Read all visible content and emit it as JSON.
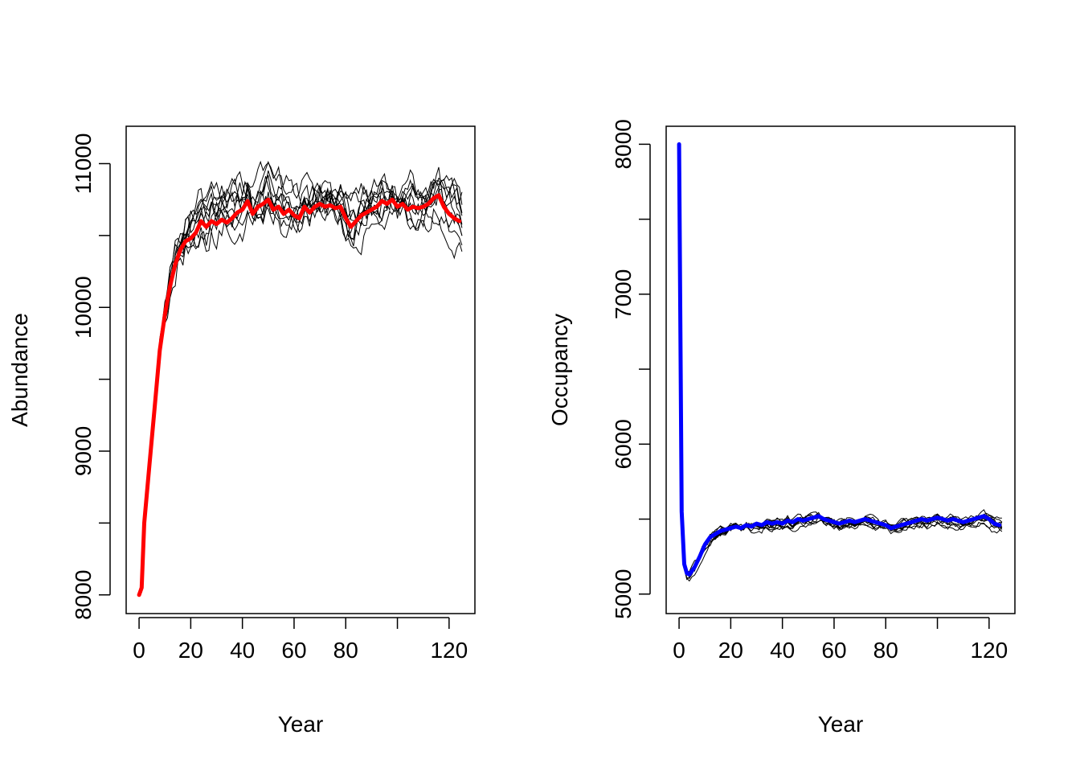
{
  "chart_data": [
    {
      "type": "line",
      "xlabel": "Year",
      "ylabel": "Abundance",
      "xlim": [
        -5,
        130
      ],
      "ylim": [
        7870,
        11260
      ],
      "x_ticks": [
        0,
        20,
        40,
        60,
        80,
        100,
        120
      ],
      "x_tick_labels": [
        "0",
        "20",
        "40",
        "60",
        "80",
        "",
        "120"
      ],
      "y_ticks": [
        8000,
        8500,
        9000,
        9500,
        10000,
        10500,
        11000
      ],
      "y_tick_labels": [
        "8000",
        "",
        "9000",
        "",
        "10000",
        "",
        "11000"
      ],
      "grid": false,
      "legend": "none",
      "colors": {
        "mean": "#ff0000",
        "replicates": "#000000"
      },
      "replicate_lines": 10,
      "mean_series": {
        "x": [
          0,
          1,
          2,
          4,
          6,
          8,
          10,
          12,
          14,
          16,
          18,
          20,
          22,
          24,
          26,
          28,
          30,
          32,
          34,
          36,
          38,
          40,
          42,
          44,
          46,
          48,
          50,
          52,
          54,
          56,
          58,
          60,
          62,
          64,
          66,
          68,
          70,
          72,
          74,
          76,
          78,
          80,
          82,
          84,
          86,
          88,
          90,
          92,
          94,
          96,
          98,
          100,
          102,
          104,
          106,
          108,
          110,
          112,
          114,
          116,
          118,
          120,
          122,
          124
        ],
        "y": [
          8000,
          8050,
          8500,
          8900,
          9300,
          9700,
          9950,
          10150,
          10300,
          10400,
          10460,
          10480,
          10520,
          10600,
          10560,
          10600,
          10580,
          10610,
          10590,
          10620,
          10660,
          10680,
          10740,
          10650,
          10700,
          10720,
          10750,
          10680,
          10700,
          10650,
          10680,
          10640,
          10620,
          10700,
          10660,
          10700,
          10720,
          10700,
          10710,
          10690,
          10700,
          10620,
          10560,
          10600,
          10640,
          10660,
          10680,
          10700,
          10740,
          10720,
          10750,
          10700,
          10720,
          10680,
          10700,
          10690,
          10700,
          10720,
          10760,
          10780,
          10700,
          10650,
          10620,
          10600
        ]
      }
    },
    {
      "type": "line",
      "xlabel": "Year",
      "ylabel": "Occupancy",
      "xlim": [
        -5,
        130
      ],
      "ylim": [
        4870,
        8120
      ],
      "x_ticks": [
        0,
        20,
        40,
        60,
        80,
        100,
        120
      ],
      "x_tick_labels": [
        "0",
        "20",
        "40",
        "60",
        "80",
        "",
        "120"
      ],
      "y_ticks": [
        5000,
        5500,
        6000,
        6500,
        7000,
        7500,
        8000
      ],
      "y_tick_labels": [
        "5000",
        "",
        "6000",
        "",
        "7000",
        "",
        "8000"
      ],
      "grid": false,
      "legend": "none",
      "colors": {
        "mean": "#0000ff",
        "replicates": "#000000"
      },
      "replicate_lines": 10,
      "mean_series": {
        "x": [
          0,
          1,
          2,
          3,
          4,
          6,
          8,
          10,
          12,
          14,
          16,
          18,
          20,
          22,
          24,
          26,
          28,
          30,
          32,
          34,
          36,
          38,
          40,
          42,
          44,
          46,
          48,
          50,
          52,
          54,
          56,
          58,
          60,
          62,
          64,
          66,
          68,
          70,
          72,
          74,
          76,
          78,
          80,
          82,
          84,
          86,
          88,
          90,
          92,
          94,
          96,
          98,
          100,
          102,
          104,
          106,
          108,
          110,
          112,
          114,
          116,
          118,
          120,
          122,
          124
        ],
        "y": [
          8000,
          5550,
          5200,
          5140,
          5130,
          5180,
          5250,
          5330,
          5380,
          5400,
          5420,
          5430,
          5440,
          5450,
          5440,
          5460,
          5450,
          5470,
          5460,
          5480,
          5470,
          5480,
          5470,
          5490,
          5480,
          5500,
          5490,
          5500,
          5510,
          5520,
          5500,
          5490,
          5480,
          5470,
          5480,
          5490,
          5480,
          5490,
          5500,
          5490,
          5480,
          5470,
          5460,
          5440,
          5450,
          5460,
          5470,
          5480,
          5490,
          5500,
          5490,
          5500,
          5510,
          5500,
          5490,
          5500,
          5490,
          5480,
          5490,
          5500,
          5510,
          5520,
          5500,
          5470,
          5460
        ]
      }
    }
  ]
}
